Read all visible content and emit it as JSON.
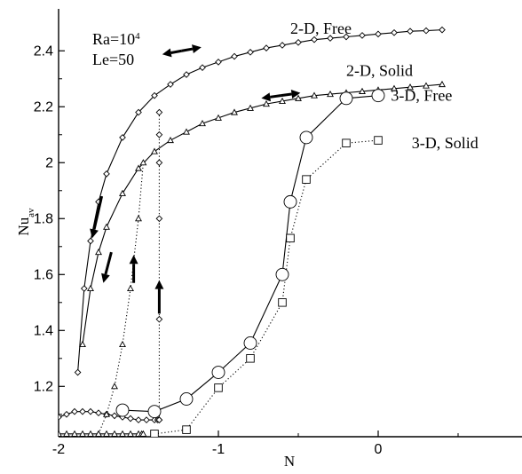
{
  "chart_data": {
    "type": "line",
    "xlabel": "N",
    "ylabel": "Nu_av",
    "ylabel_main": "Nu",
    "ylabel_sub": "av",
    "xlim": [
      -2,
      0.9
    ],
    "ylim": [
      1.02,
      2.55
    ],
    "xticks": [
      -2,
      -1,
      0
    ],
    "xtick_labels": [
      "-2",
      "-1",
      "0"
    ],
    "yticks": [
      1.2,
      1.4,
      1.6,
      1.8,
      2.0,
      2.2,
      2.4
    ],
    "ytick_labels": [
      "1.2",
      "1.4",
      "1.6",
      "1.8",
      "2",
      "2.2",
      "2.4"
    ],
    "grid": false,
    "params": {
      "ra_text": "Ra=10",
      "ra_exp": "4",
      "le_text": "Le=50"
    },
    "series": [
      {
        "name": "2-D, Free",
        "marker": "diamond",
        "line": "solid",
        "upper_branch": {
          "x": [
            -1.88,
            -1.84,
            -1.8,
            -1.75,
            -1.7,
            -1.6,
            -1.5,
            -1.4,
            -1.3,
            -1.2,
            -1.1,
            -1.0,
            -0.9,
            -0.8,
            -0.7,
            -0.6,
            -0.5,
            -0.4,
            -0.3,
            -0.2,
            -0.1,
            0.0,
            0.1,
            0.2,
            0.3,
            0.4
          ],
          "y": [
            1.25,
            1.55,
            1.72,
            1.86,
            1.96,
            2.09,
            2.18,
            2.24,
            2.28,
            2.315,
            2.34,
            2.36,
            2.38,
            2.395,
            2.41,
            2.42,
            2.43,
            2.44,
            2.445,
            2.45,
            2.455,
            2.46,
            2.465,
            2.47,
            2.472,
            2.475
          ]
        },
        "lower_branch": {
          "x": [
            -2.0,
            -1.95,
            -1.9,
            -1.85,
            -1.8,
            -1.75,
            -1.7,
            -1.65,
            -1.6,
            -1.55,
            -1.5,
            -1.45,
            -1.4,
            -1.38,
            -1.37
          ],
          "y": [
            1.09,
            1.1,
            1.11,
            1.11,
            1.11,
            1.105,
            1.1,
            1.095,
            1.09,
            1.085,
            1.08,
            1.08,
            1.08,
            1.08,
            1.08
          ]
        },
        "transition": {
          "x": [
            -1.37,
            -1.37,
            -1.37,
            -1.37,
            -1.37,
            -1.37
          ],
          "y": [
            1.08,
            1.44,
            1.8,
            2.0,
            2.1,
            2.18
          ]
        }
      },
      {
        "name": "2-D, Solid",
        "marker": "triangle",
        "line": "solid",
        "upper_branch": {
          "x": [
            -1.85,
            -1.8,
            -1.75,
            -1.7,
            -1.6,
            -1.5,
            -1.4,
            -1.3,
            -1.2,
            -1.1,
            -1.0,
            -0.9,
            -0.8,
            -0.7,
            -0.6,
            -0.5,
            -0.4,
            -0.3,
            -0.2,
            -0.1,
            0.0,
            0.1,
            0.2,
            0.3,
            0.4
          ],
          "y": [
            1.35,
            1.55,
            1.68,
            1.77,
            1.89,
            1.98,
            2.04,
            2.08,
            2.11,
            2.14,
            2.16,
            2.18,
            2.195,
            2.21,
            2.22,
            2.23,
            2.24,
            2.245,
            2.25,
            2.255,
            2.26,
            2.265,
            2.27,
            2.275,
            2.28
          ]
        },
        "lower_branch": {
          "x": [
            -2.0,
            -1.95,
            -1.9,
            -1.85,
            -1.8,
            -1.75,
            -1.7,
            -1.65,
            -1.6,
            -1.55,
            -1.5,
            -1.48,
            -1.47
          ],
          "y": [
            1.03,
            1.03,
            1.03,
            1.03,
            1.03,
            1.03,
            1.03,
            1.03,
            1.03,
            1.03,
            1.03,
            1.03,
            1.03
          ]
        },
        "transition": {
          "x": [
            -1.75,
            -1.7,
            -1.65,
            -1.6,
            -1.55,
            -1.5,
            -1.47
          ],
          "y": [
            1.03,
            1.1,
            1.2,
            1.35,
            1.55,
            1.8,
            2.0
          ]
        }
      },
      {
        "name": "3-D, Free",
        "marker": "circle",
        "line": "solid",
        "x": [
          -1.6,
          -1.4,
          -1.2,
          -1.0,
          -0.8,
          -0.6,
          -0.55,
          -0.45,
          -0.2,
          0.0
        ],
        "y": [
          1.115,
          1.11,
          1.155,
          1.25,
          1.355,
          1.6,
          1.86,
          2.09,
          2.23,
          2.24
        ]
      },
      {
        "name": "3-D, Solid",
        "marker": "square",
        "line": "dotted",
        "x": [
          -1.4,
          -1.2,
          -1.0,
          -0.8,
          -0.6,
          -0.55,
          -0.45,
          -0.2,
          0.0
        ],
        "y": [
          1.03,
          1.045,
          1.195,
          1.3,
          1.5,
          1.73,
          1.94,
          2.07,
          2.08
        ]
      }
    ],
    "annotations": [
      {
        "text": "2-D, Free",
        "at": [
          -0.55,
          2.48
        ]
      },
      {
        "text": "2-D, Solid",
        "at": [
          -0.2,
          2.33
        ]
      },
      {
        "text": "3-D, Free",
        "at": [
          0.08,
          2.24
        ]
      },
      {
        "text": "3-D, Solid",
        "at": [
          0.21,
          2.07
        ]
      }
    ]
  }
}
